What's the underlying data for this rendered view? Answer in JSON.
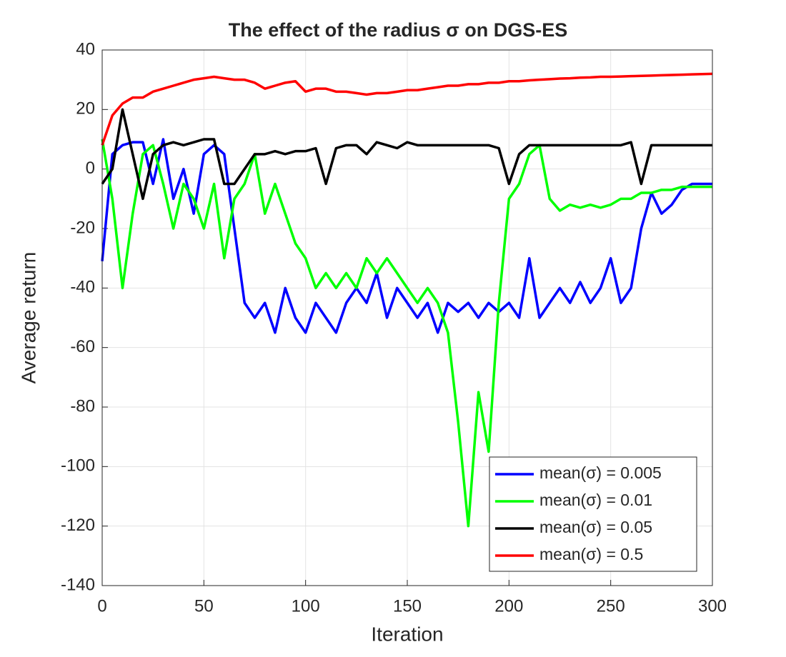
{
  "chart_data": {
    "type": "line",
    "title": "The effect of the radius σ on DGS-ES",
    "xlabel": "Iteration",
    "ylabel": "Average return",
    "x": [
      0,
      5,
      10,
      15,
      20,
      25,
      30,
      35,
      40,
      45,
      50,
      55,
      60,
      65,
      70,
      75,
      80,
      85,
      90,
      95,
      100,
      105,
      110,
      115,
      120,
      125,
      130,
      135,
      140,
      145,
      150,
      155,
      160,
      165,
      170,
      175,
      180,
      185,
      190,
      195,
      200,
      205,
      210,
      215,
      220,
      225,
      230,
      235,
      240,
      245,
      250,
      255,
      260,
      265,
      270,
      275,
      280,
      285,
      290,
      295,
      300
    ],
    "series": [
      {
        "name": "mean(σ) = 0.005",
        "color": "#0000ff",
        "values": [
          -31,
          5,
          8,
          9,
          9,
          -5,
          10,
          -10,
          0,
          -15,
          5,
          8,
          5,
          -20,
          -45,
          -50,
          -45,
          -55,
          -40,
          -50,
          -55,
          -45,
          -50,
          -55,
          -45,
          -40,
          -45,
          -35,
          -50,
          -40,
          -45,
          -50,
          -45,
          -55,
          -45,
          -48,
          -45,
          -50,
          -45,
          -48,
          -45,
          -50,
          -30,
          -50,
          -45,
          -40,
          -45,
          -38,
          -45,
          -40,
          -30,
          -45,
          -40,
          -20,
          -8,
          -15,
          -12,
          -7,
          -5,
          -5,
          -5
        ]
      },
      {
        "name": "mean(σ) = 0.01",
        "color": "#00ff00",
        "values": [
          10,
          -10,
          -40,
          -15,
          5,
          8,
          -5,
          -20,
          -5,
          -10,
          -20,
          -5,
          -30,
          -10,
          -5,
          5,
          -15,
          -5,
          -15,
          -25,
          -30,
          -40,
          -35,
          -40,
          -35,
          -40,
          -30,
          -35,
          -30,
          -35,
          -40,
          -45,
          -40,
          -45,
          -55,
          -85,
          -120,
          -75,
          -95,
          -45,
          -10,
          -5,
          5,
          8,
          -10,
          -14,
          -12,
          -13,
          -12,
          -13,
          -12,
          -10,
          -10,
          -8,
          -8,
          -7,
          -7,
          -6,
          -6,
          -6,
          -6
        ]
      },
      {
        "name": "mean(σ) = 0.05",
        "color": "#000000",
        "values": [
          -5,
          0,
          20,
          5,
          -10,
          5,
          8,
          9,
          8,
          9,
          10,
          10,
          -5,
          -5,
          0,
          5,
          5,
          6,
          5,
          6,
          6,
          7,
          -5,
          7,
          8,
          8,
          5,
          9,
          8,
          7,
          9,
          8,
          8,
          8,
          8,
          8,
          8,
          8,
          8,
          7,
          -5,
          5,
          8,
          8,
          8,
          8,
          8,
          8,
          8,
          8,
          8,
          8,
          9,
          -5,
          8,
          8,
          8,
          8,
          8,
          8,
          8
        ]
      },
      {
        "name": "mean(σ) = 0.5",
        "color": "#ff0000",
        "values": [
          8,
          18,
          22,
          24,
          24,
          26,
          27,
          28,
          29,
          30,
          30.5,
          31,
          30.5,
          30,
          30,
          29,
          27,
          28,
          29,
          29.5,
          26,
          27,
          27,
          26,
          26,
          25.5,
          25,
          25.5,
          25.5,
          26,
          26.5,
          26.5,
          27,
          27.5,
          28,
          28,
          28.5,
          28.5,
          29,
          29,
          29.5,
          29.5,
          29.8,
          30,
          30.2,
          30.4,
          30.5,
          30.7,
          30.8,
          31,
          31,
          31.1,
          31.2,
          31.3,
          31.4,
          31.5,
          31.6,
          31.7,
          31.8,
          31.9,
          32
        ]
      }
    ],
    "xlim": [
      0,
      300
    ],
    "xticks": [
      0,
      50,
      100,
      150,
      200,
      250,
      300
    ],
    "ylim": [
      -140,
      40
    ],
    "yticks": [
      -140,
      -120,
      -100,
      -80,
      -60,
      -40,
      -20,
      0,
      20,
      40
    ],
    "grid": true,
    "legend": "lower right"
  }
}
